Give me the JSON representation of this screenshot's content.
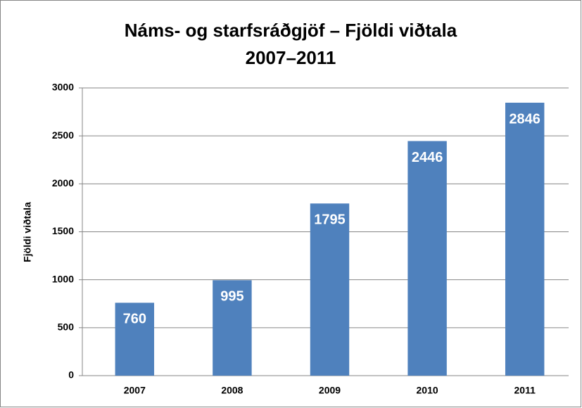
{
  "chart_data": {
    "type": "bar",
    "title": "Náms- og starfsráðgjöf  –  Fjöldi viðtala",
    "subtitle": "2007–2011",
    "y_label": "Fjöldi viðtala",
    "categories": [
      "2007",
      "2008",
      "2009",
      "2010",
      "2011"
    ],
    "values": [
      760,
      995,
      1795,
      2446,
      2846
    ],
    "color": "#4f81bd",
    "ylim": [
      0,
      3000
    ],
    "yticks": [
      0,
      500,
      1000,
      1500,
      2000,
      2500,
      3000
    ],
    "grid": true
  }
}
